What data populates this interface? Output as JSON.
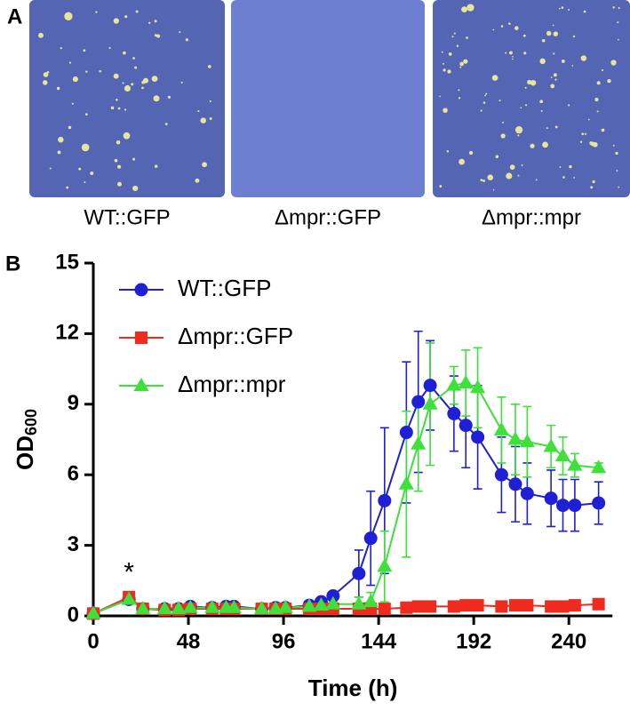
{
  "panel_a": {
    "label": "A",
    "plates": [
      "WT::GFP",
      "Δmpr::GFP",
      "Δmpr::mpr"
    ]
  },
  "chart_data": {
    "type": "line",
    "panel_label": "B",
    "xlabel": "Time (h)",
    "ylabel": "OD",
    "ylabel_sub": "600",
    "x": [
      0,
      18,
      25,
      36,
      43,
      49,
      60,
      67,
      71,
      85,
      92,
      97,
      109,
      115,
      121,
      134,
      140,
      147,
      158,
      164,
      170,
      182,
      188,
      194,
      206,
      213,
      219,
      231,
      237,
      243,
      255
    ],
    "xlim": [
      0,
      262
    ],
    "xticks": [
      0,
      48,
      96,
      144,
      192,
      240
    ],
    "ylim": [
      0,
      15
    ],
    "yticks": [
      0,
      3,
      6,
      9,
      12,
      15
    ],
    "annotation": {
      "text": "*",
      "x": 18,
      "y": 0.8
    },
    "series": [
      {
        "name": "WT::GFP",
        "color": "#1f1fd6",
        "marker": "circle",
        "values": [
          0.1,
          0.7,
          0.3,
          0.3,
          0.3,
          0.4,
          0.35,
          0.4,
          0.4,
          0.3,
          0.35,
          0.35,
          0.45,
          0.6,
          0.85,
          1.8,
          3.3,
          4.9,
          7.8,
          9.1,
          9.8,
          8.6,
          8.1,
          7.6,
          6.0,
          5.6,
          5.2,
          5.0,
          4.7,
          4.7,
          4.8
        ],
        "errors": [
          0.1,
          0.1,
          0.1,
          0.1,
          0.1,
          0.1,
          0.1,
          0.1,
          0.1,
          0.1,
          0.1,
          0.1,
          0.1,
          0.1,
          0.1,
          1.0,
          2.0,
          3.1,
          3.0,
          3.0,
          1.9,
          1.6,
          1.8,
          2.2,
          1.6,
          1.6,
          1.3,
          1.2,
          1.1,
          1.1,
          0.9
        ]
      },
      {
        "name": "Δmpr::GFP",
        "color": "#f02a1e",
        "marker": "square",
        "values": [
          0.1,
          0.8,
          0.3,
          0.25,
          0.25,
          0.3,
          0.3,
          0.3,
          0.3,
          0.3,
          0.3,
          0.3,
          0.3,
          0.3,
          0.3,
          0.3,
          0.3,
          0.3,
          0.35,
          0.4,
          0.4,
          0.4,
          0.45,
          0.45,
          0.4,
          0.45,
          0.45,
          0.4,
          0.4,
          0.45,
          0.5
        ],
        "errors": [
          0.1,
          0.1,
          0.1,
          0.1,
          0.1,
          0.1,
          0.1,
          0.1,
          0.1,
          0.1,
          0.1,
          0.1,
          0.1,
          0.1,
          0.1,
          0.1,
          0.1,
          0.1,
          0.1,
          0.1,
          0.1,
          0.1,
          0.1,
          0.1,
          0.1,
          0.1,
          0.1,
          0.1,
          0.1,
          0.1,
          0.1
        ]
      },
      {
        "name": "Δmpr::mpr",
        "color": "#3ee03a",
        "marker": "triangle",
        "values": [
          0.1,
          0.7,
          0.3,
          0.3,
          0.3,
          0.35,
          0.35,
          0.35,
          0.35,
          0.3,
          0.3,
          0.35,
          0.4,
          0.45,
          0.5,
          0.5,
          0.6,
          2.1,
          5.6,
          7.3,
          9.0,
          9.8,
          9.9,
          9.7,
          7.9,
          7.5,
          7.4,
          7.2,
          6.8,
          6.4,
          6.3
        ],
        "errors": [
          0.1,
          0.1,
          0.1,
          0.1,
          0.1,
          0.1,
          0.1,
          0.1,
          0.1,
          0.1,
          0.1,
          0.1,
          0.1,
          0.1,
          0.1,
          0.3,
          0.4,
          1.5,
          3.1,
          2.0,
          2.6,
          0.8,
          1.4,
          1.7,
          1.4,
          1.5,
          1.5,
          0.9,
          0.8,
          0.5,
          0.2
        ]
      }
    ]
  }
}
